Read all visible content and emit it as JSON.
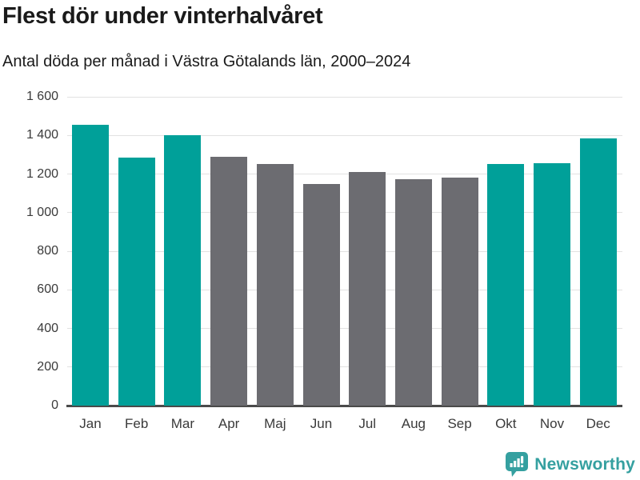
{
  "header": {
    "title": "Flest dör under vinterhalvåret",
    "subtitle": "Antal döda per månad i Västra Götalands län, 2000–2024"
  },
  "chart_data": {
    "type": "bar",
    "title": "Flest dör under vinterhalvåret",
    "subtitle": "Antal döda per månad i Västra Götalands län, 2000–2024",
    "categories": [
      "Jan",
      "Feb",
      "Mar",
      "Apr",
      "Maj",
      "Jun",
      "Jul",
      "Aug",
      "Sep",
      "Okt",
      "Nov",
      "Dec"
    ],
    "values": [
      1455,
      1285,
      1400,
      1290,
      1250,
      1150,
      1210,
      1175,
      1180,
      1250,
      1255,
      1385
    ],
    "bar_colors": [
      "highlight",
      "highlight",
      "highlight",
      "muted",
      "muted",
      "muted",
      "muted",
      "muted",
      "muted",
      "highlight",
      "highlight",
      "highlight"
    ],
    "palette": {
      "highlight": "#00a099",
      "muted": "#6c6c71"
    },
    "xlabel": "",
    "ylabel": "",
    "ylim": [
      0,
      1600
    ],
    "ytick_interval": 200,
    "ytick_labels": [
      "0",
      "200",
      "400",
      "600",
      "800",
      "1 000",
      "1 200",
      "1 400",
      "1 600"
    ],
    "grid": true,
    "legend_position": "none"
  },
  "footer": {
    "brand": "Newsworthy",
    "brand_color": "#35a0a0",
    "logo_icon": "bar-chart-bubble-icon"
  },
  "colors": {
    "background": "#ffffff",
    "title_text": "#1a1a1a",
    "tick_text": "#3a3a3a",
    "gridline": "#e2e2e2",
    "axis_line": "#4a4a4a"
  }
}
